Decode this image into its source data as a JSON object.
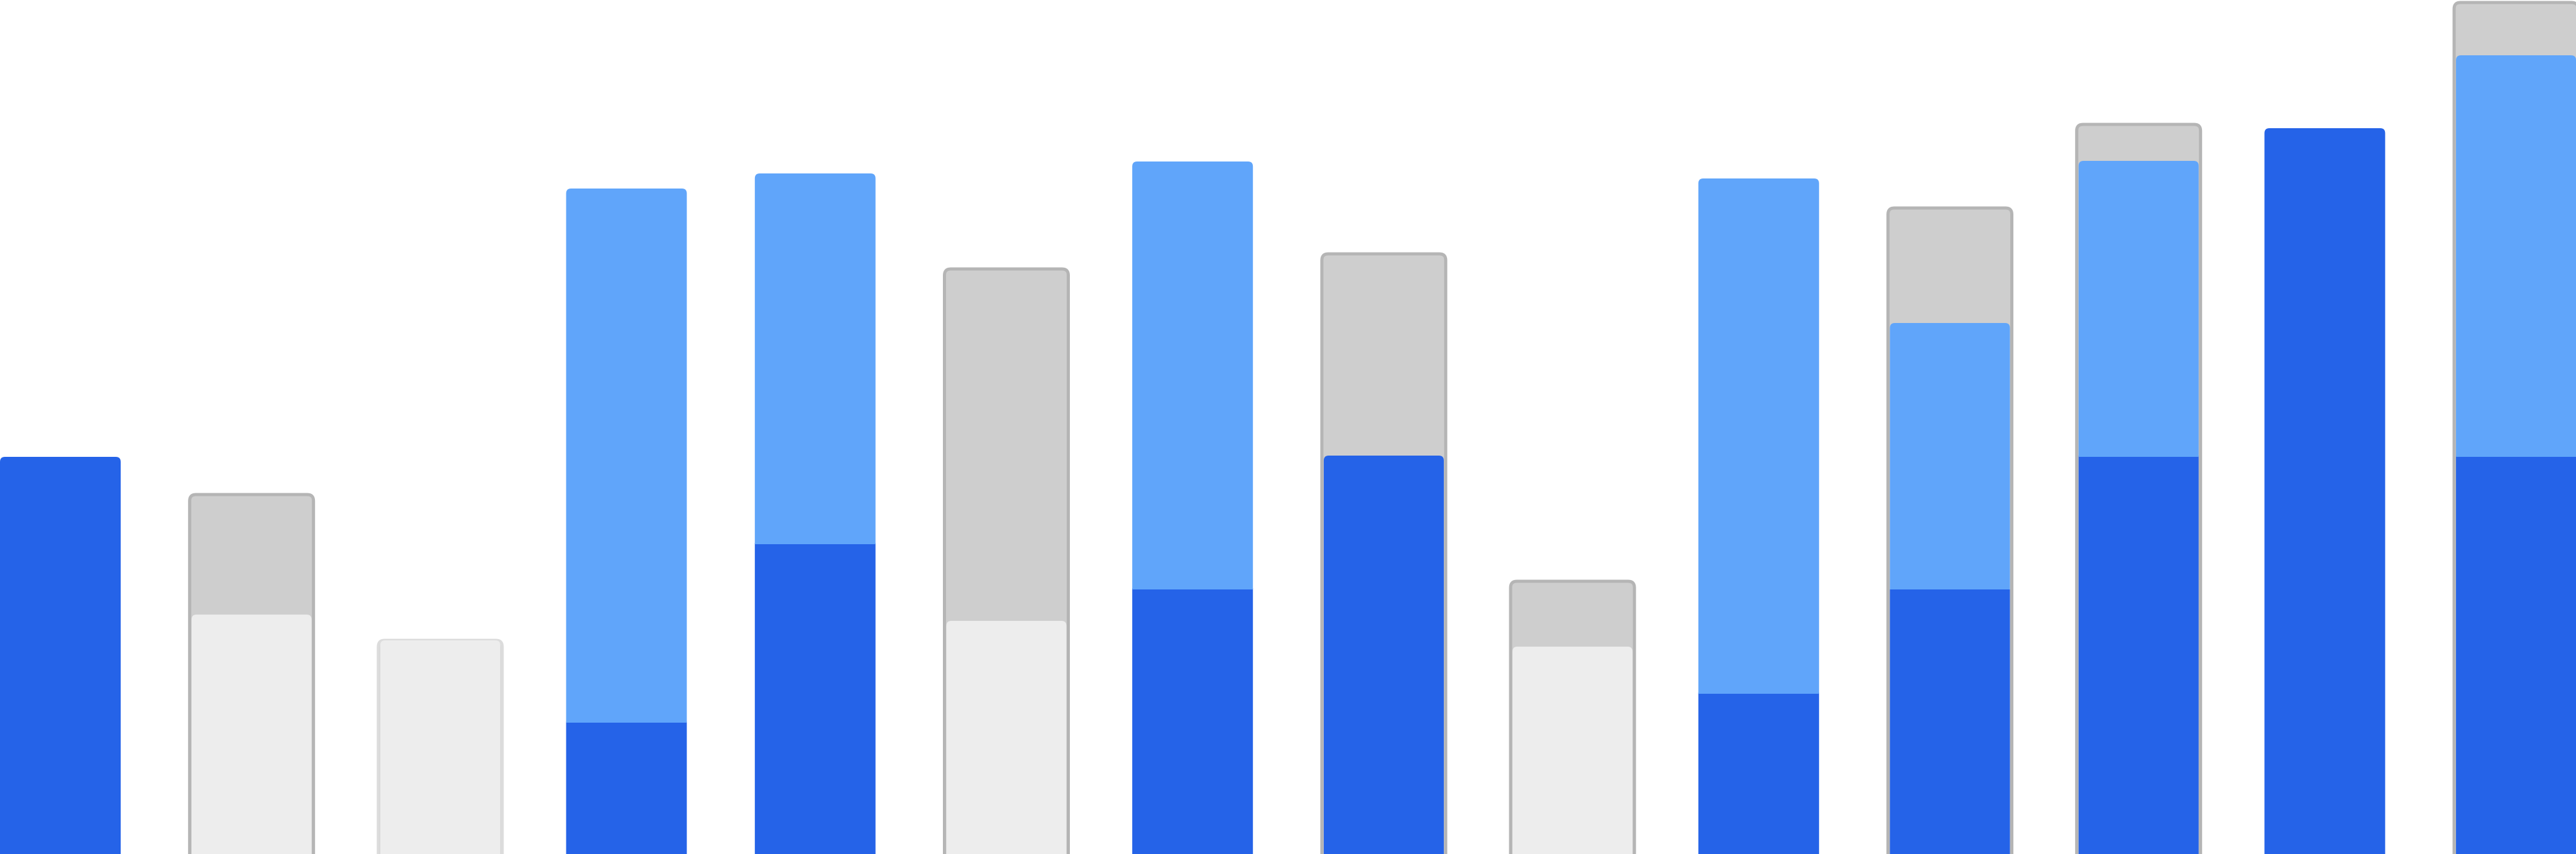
{
  "chart_data": {
    "type": "bar",
    "stacked": true,
    "categories": [
      "",
      "",
      "",
      "",
      "",
      "",
      "",
      "",
      "",
      "",
      "",
      "",
      "",
      ""
    ],
    "ylim": [
      0,
      1359
    ],
    "grid": false,
    "legend": "none",
    "colors": {
      "dark_blue": "#2563e8",
      "light_blue": "#60a5fa",
      "gray": "#cecece",
      "light_gray": "#ededed",
      "gray_outline": "#b5b5b5",
      "light_gray_outline": "#dcdcdc"
    },
    "bars": [
      {
        "segments": [
          {
            "kind": "dark_blue",
            "value": 632
          }
        ]
      },
      {
        "outline": "gray_outline",
        "segments": [
          {
            "kind": "light_gray",
            "value": 381
          },
          {
            "kind": "gray",
            "value": 191
          }
        ]
      },
      {
        "outline": "light_gray_outline",
        "segments": [
          {
            "kind": "light_gray",
            "value": 340
          }
        ]
      },
      {
        "segments": [
          {
            "kind": "dark_blue",
            "value": 211
          },
          {
            "kind": "light_blue",
            "value": 848
          }
        ]
      },
      {
        "segments": [
          {
            "kind": "dark_blue",
            "value": 495
          },
          {
            "kind": "light_blue",
            "value": 588
          }
        ]
      },
      {
        "outline": "gray_outline",
        "segments": [
          {
            "kind": "light_gray",
            "value": 371
          },
          {
            "kind": "gray",
            "value": 560
          }
        ]
      },
      {
        "segments": [
          {
            "kind": "dark_blue",
            "value": 423
          },
          {
            "kind": "light_blue",
            "value": 679
          }
        ]
      },
      {
        "outline": "gray_outline",
        "segments": [
          {
            "kind": "dark_blue",
            "value": 634
          },
          {
            "kind": "gray",
            "value": 321
          }
        ]
      },
      {
        "outline": "gray_outline",
        "segments": [
          {
            "kind": "light_gray",
            "value": 330
          },
          {
            "kind": "gray",
            "value": 104
          }
        ]
      },
      {
        "segments": [
          {
            "kind": "dark_blue",
            "value": 257
          },
          {
            "kind": "light_blue",
            "value": 818
          }
        ]
      },
      {
        "outline": "gray_outline",
        "segments": [
          {
            "kind": "dark_blue",
            "value": 423
          },
          {
            "kind": "light_blue",
            "value": 422
          },
          {
            "kind": "gray",
            "value": 183
          }
        ]
      },
      {
        "outline": "gray_outline",
        "segments": [
          {
            "kind": "dark_blue",
            "value": 634
          },
          {
            "kind": "light_blue",
            "value": 469
          },
          {
            "kind": "gray",
            "value": 58
          }
        ]
      },
      {
        "segments": [
          {
            "kind": "dark_blue",
            "value": 1155
          }
        ]
      },
      {
        "outline": "gray_outline",
        "segments": [
          {
            "kind": "dark_blue",
            "value": 634
          },
          {
            "kind": "light_blue",
            "value": 637
          },
          {
            "kind": "gray",
            "value": 84
          }
        ]
      }
    ]
  }
}
